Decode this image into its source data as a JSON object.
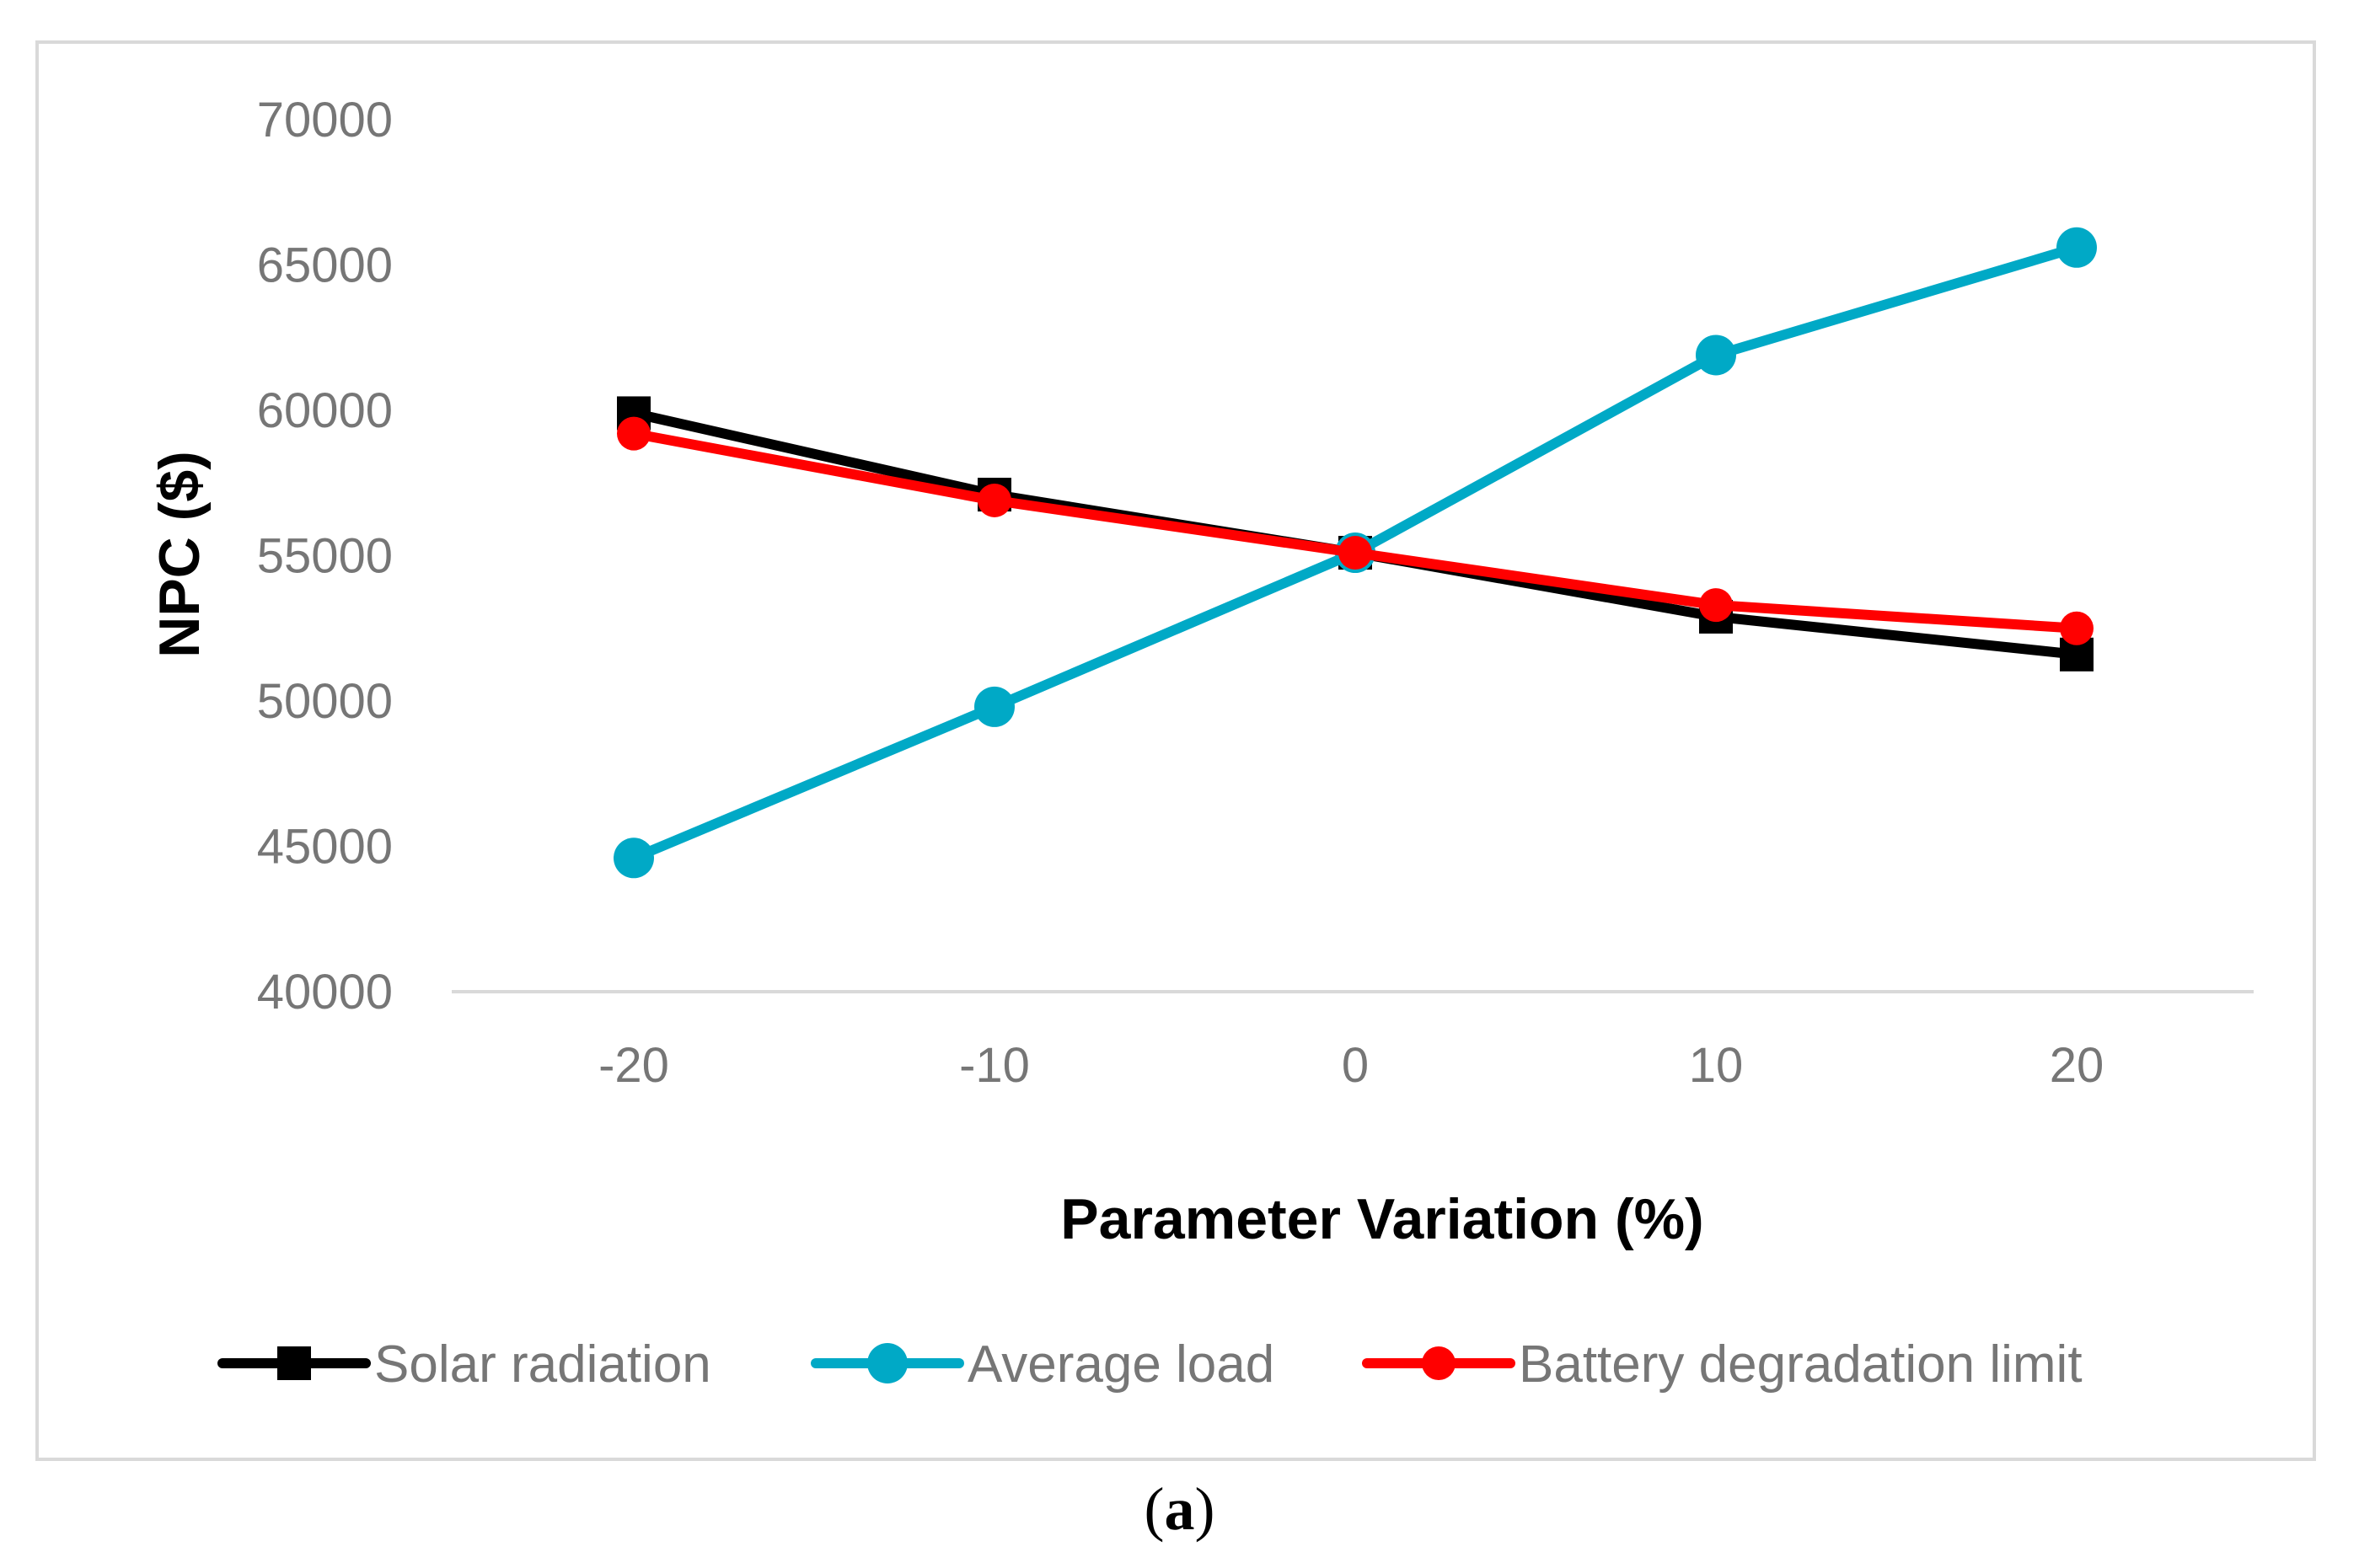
{
  "figure": {
    "caption_open": "(",
    "caption_letter": "a",
    "caption_close": ")"
  },
  "chart_data": {
    "type": "line",
    "title": "",
    "xlabel": "Parameter Variation (%)",
    "ylabel": "NPC ($)",
    "categories": [
      "-20",
      "-10",
      "0",
      "10",
      "20"
    ],
    "x": [
      -20,
      -10,
      0,
      10,
      20
    ],
    "ylim": [
      40000,
      70000
    ],
    "yticks": [
      40000,
      45000,
      50000,
      55000,
      60000,
      65000,
      70000
    ],
    "grid": false,
    "legend_position": "bottom",
    "series": [
      {
        "name": "Solar radiation",
        "values": [
          59900,
          57100,
          55100,
          52900,
          51600
        ],
        "color": "#000000",
        "marker": "square"
      },
      {
        "name": "Average load",
        "values": [
          44600,
          49800,
          55100,
          61900,
          65600
        ],
        "color": "#00A9C6",
        "marker": "circle"
      },
      {
        "name": "Battery degradation limit",
        "values": [
          59200,
          56900,
          55100,
          53300,
          52500
        ],
        "color": "#FF0000",
        "marker": "circle"
      }
    ]
  }
}
